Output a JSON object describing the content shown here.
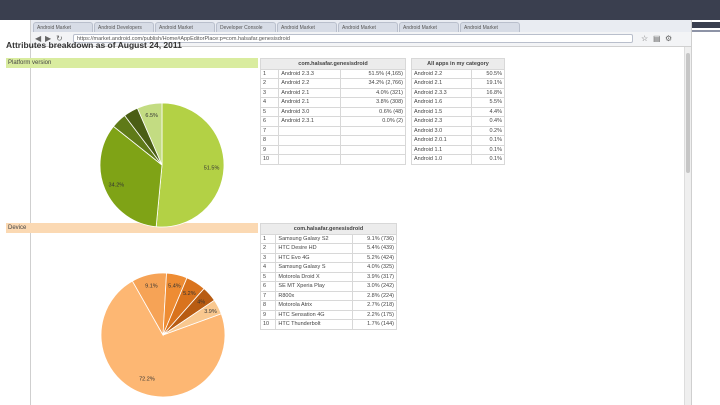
{
  "browser": {
    "tabs": [
      "Android Market",
      "Android Developers",
      "Android Market",
      "Developer Console",
      "Android Market",
      "Android Market",
      "Android Market",
      "Android Market"
    ],
    "address": "https://market.android.com/publish/Home#AppEditorPlace:p=com.halsafar.genesisdroid"
  },
  "page": {
    "title": "Attributes breakdown as of August 24, 2011"
  },
  "platform": {
    "section_label": "Platform version",
    "app_header": "com.halsafar.genesisdroid",
    "category_header": "All apps in my category",
    "rows": [
      {
        "rank": "1",
        "name": "Android 2.3.3",
        "value": "51.5% (4,165)"
      },
      {
        "rank": "2",
        "name": "Android 2.2",
        "value": "34.2% (2,766)"
      },
      {
        "rank": "3",
        "name": "Android 2.1",
        "value": "4.0% (321)"
      },
      {
        "rank": "4",
        "name": "Android 2.1",
        "value": "3.8% (308)"
      },
      {
        "rank": "5",
        "name": "Android 3.0",
        "value": "0.6% (48)"
      },
      {
        "rank": "6",
        "name": "Android 2.3.1",
        "value": "0.0% (2)"
      },
      {
        "rank": "7",
        "name": "",
        "value": ""
      },
      {
        "rank": "8",
        "name": "",
        "value": ""
      },
      {
        "rank": "9",
        "name": "",
        "value": ""
      },
      {
        "rank": "10",
        "name": "",
        "value": ""
      }
    ],
    "category_rows": [
      {
        "name": "Android 2.2",
        "value": "50.5%"
      },
      {
        "name": "Android 2.1",
        "value": "19.1%"
      },
      {
        "name": "Android 2.3.3",
        "value": "16.8%"
      },
      {
        "name": "Android 1.6",
        "value": "5.5%"
      },
      {
        "name": "Android 1.5",
        "value": "4.4%"
      },
      {
        "name": "Android 2.3",
        "value": "0.4%"
      },
      {
        "name": "Android 3.0",
        "value": "0.2%"
      },
      {
        "name": "Android 2.0.1",
        "value": "0.1%"
      },
      {
        "name": "Android 1.1",
        "value": "0.1%"
      },
      {
        "name": "Android 1.0",
        "value": "0.1%"
      }
    ]
  },
  "device": {
    "section_label": "Device",
    "app_header": "com.halsafar.genesisdroid",
    "rows": [
      {
        "rank": "1",
        "name": "Samsung Galaxy S2",
        "value": "9.1% (736)"
      },
      {
        "rank": "2",
        "name": "HTC Desire HD",
        "value": "5.4% (439)"
      },
      {
        "rank": "3",
        "name": "HTC Evo 4G",
        "value": "5.2% (424)"
      },
      {
        "rank": "4",
        "name": "Samsung Galaxy S",
        "value": "4.0% (325)"
      },
      {
        "rank": "5",
        "name": "Motorola Droid X",
        "value": "3.9% (317)"
      },
      {
        "rank": "6",
        "name": "SE MT Xperia Play",
        "value": "3.0% (242)"
      },
      {
        "rank": "7",
        "name": "R800x",
        "value": "2.8% (224)"
      },
      {
        "rank": "8",
        "name": "Motorola Atrix",
        "value": "2.7% (218)"
      },
      {
        "rank": "9",
        "name": "HTC Sensation 4G",
        "value": "2.2% (175)"
      },
      {
        "rank": "10",
        "name": "HTC Thunderbolt",
        "value": "1.7% (144)"
      }
    ]
  },
  "chart_data": [
    {
      "type": "pie",
      "values": [
        51.5,
        34.2,
        4.0,
        3.8,
        6.5
      ],
      "slice_labels": [
        "51.5%",
        "34.2%",
        "",
        "",
        "6.5%"
      ],
      "colors": [
        "#b3d145",
        "#7fa316",
        "#5f7a18",
        "#4a5e14",
        "#c3dc82"
      ]
    },
    {
      "type": "pie",
      "values": [
        72.2,
        9.1,
        5.4,
        5.2,
        4.0,
        3.9
      ],
      "slice_labels": [
        "72.2%",
        "9.1%",
        "5.4%",
        "5.2%",
        "4%",
        "3.9%"
      ],
      "colors": [
        "#fdb773",
        "#f6a356",
        "#ee8c33",
        "#d9731d",
        "#b85c12",
        "#f9c88f"
      ]
    }
  ]
}
